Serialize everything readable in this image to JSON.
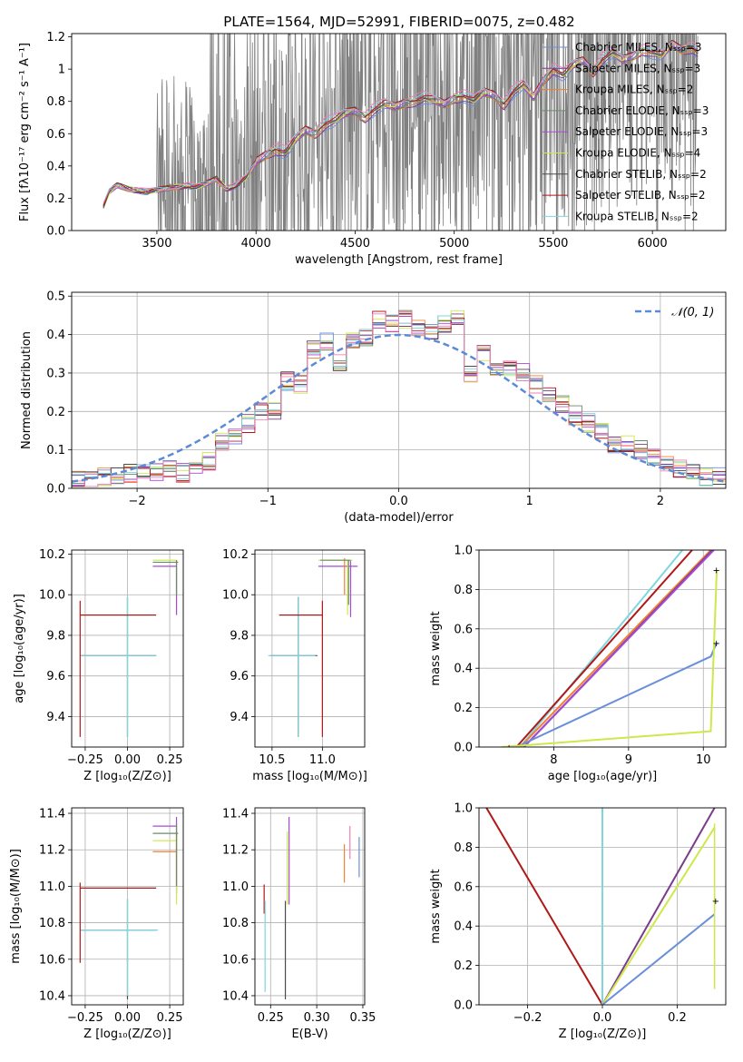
{
  "figure": {
    "title": "PLATE=1564, MJD=52991, FIBERID=0075, z=0.482"
  },
  "colors": {
    "chabrier_miles": "#6a8fd8",
    "salpeter_miles": "#7b3c8c",
    "kroupa_miles": "#f07f32",
    "chabrier_elodie": "#6a8b6a",
    "salpeter_elodie": "#a64ad6",
    "kroupa_elodie": "#cde84a",
    "chabrier_stelib": "#4a4a4a",
    "salpeter_stelib": "#b01818",
    "kroupa_stelib": "#7fd6e0",
    "pink_series": "#f07fb4",
    "data": "#808080",
    "normal": "#5b8ad6"
  },
  "chart_data": [
    {
      "id": "spectrum",
      "type": "line",
      "xlabel": "wavelength [Angstrom, rest frame]",
      "ylabel": "Flux [fλ10⁻¹⁷ erg cm⁻² s⁻¹ A⁻¹]",
      "xlim": [
        3070,
        6370
      ],
      "ylim": [
        0,
        1.22
      ],
      "xticks": [
        3500,
        4000,
        4500,
        5000,
        5500,
        6000
      ],
      "yticks": [
        0.0,
        0.2,
        0.4,
        0.6,
        0.8,
        1.0,
        1.2
      ],
      "legend_position": "top-right",
      "series": [
        {
          "name": "Chabrier MILES, N_SSP=3",
          "color": "#6a8fd8"
        },
        {
          "name": "Salpeter MILES, N_SSP=3",
          "color": "#7b3c8c"
        },
        {
          "name": "Kroupa MILES, N_SSP=2",
          "color": "#f07f32"
        },
        {
          "name": "Chabrier ELODIE, N_SSP=3",
          "color": "#6a8b6a"
        },
        {
          "name": "Salpeter ELODIE, N_SSP=3",
          "color": "#a64ad6"
        },
        {
          "name": "Kroupa ELODIE, N_SSP=4",
          "color": "#cde84a"
        },
        {
          "name": "Chabrier STELIB, N_SSP=2",
          "color": "#4a4a4a"
        },
        {
          "name": "Salpeter STELIB, N_SSP=2",
          "color": "#b01818"
        },
        {
          "name": "Kroupa STELIB, N_SSP=2",
          "color": "#7fd6e0"
        }
      ],
      "model_curve": {
        "x": [
          3230,
          3260,
          3300,
          3350,
          3400,
          3450,
          3500,
          3550,
          3600,
          3650,
          3700,
          3750,
          3800,
          3850,
          3900,
          3950,
          4000,
          4050,
          4100,
          4150,
          4200,
          4250,
          4300,
          4350,
          4400,
          4450,
          4500,
          4550,
          4600,
          4650,
          4700,
          4750,
          4800,
          4850,
          4900,
          4950,
          5000,
          5050,
          5100,
          5150,
          5200,
          5250,
          5300,
          5350,
          5400,
          5450,
          5500,
          5550,
          5600,
          5650,
          5700,
          5750,
          5800,
          5850,
          5900,
          5950,
          6000,
          6050,
          6100,
          6150,
          6200,
          6230
        ],
        "y": [
          0.15,
          0.24,
          0.28,
          0.26,
          0.25,
          0.24,
          0.25,
          0.26,
          0.27,
          0.28,
          0.27,
          0.29,
          0.32,
          0.26,
          0.28,
          0.33,
          0.42,
          0.47,
          0.5,
          0.48,
          0.56,
          0.62,
          0.6,
          0.66,
          0.68,
          0.72,
          0.74,
          0.7,
          0.75,
          0.78,
          0.76,
          0.79,
          0.8,
          0.82,
          0.8,
          0.78,
          0.82,
          0.83,
          0.8,
          0.85,
          0.84,
          0.78,
          0.86,
          0.9,
          0.82,
          0.93,
          1.0,
          0.96,
          1.02,
          1.05,
          0.98,
          1.06,
          1.1,
          1.05,
          1.08,
          1.12,
          1.1,
          1.08,
          1.15,
          1.12,
          1.13,
          1.1
        ]
      }
    },
    {
      "id": "residuals",
      "type": "line",
      "xlabel": "(data-model)/error",
      "ylabel": "Normed distribution",
      "xlim": [
        -2.5,
        2.5
      ],
      "ylim": [
        0,
        0.51
      ],
      "xticks": [
        -2,
        -1,
        0,
        1,
        2
      ],
      "yticks": [
        0.0,
        0.1,
        0.2,
        0.3,
        0.4,
        0.5
      ],
      "legend_position": "top-right",
      "legend": "𝒩(0, 1)",
      "hist_bins": [
        -2.5,
        -2.4,
        -2.3,
        -2.2,
        -2.1,
        -2.0,
        -1.9,
        -1.8,
        -1.7,
        -1.6,
        -1.5,
        -1.4,
        -1.3,
        -1.2,
        -1.1,
        -1.0,
        -0.9,
        -0.8,
        -0.7,
        -0.6,
        -0.5,
        -0.4,
        -0.3,
        -0.2,
        -0.1,
        0.0,
        0.1,
        0.2,
        0.3,
        0.4,
        0.5,
        0.6,
        0.7,
        0.8,
        0.9,
        1.0,
        1.1,
        1.2,
        1.3,
        1.4,
        1.5,
        1.6,
        1.7,
        1.8,
        1.9,
        2.0,
        2.1,
        2.2,
        2.3,
        2.4,
        2.5
      ],
      "hist_reference": [
        0.02,
        0.02,
        0.03,
        0.03,
        0.04,
        0.04,
        0.04,
        0.05,
        0.04,
        0.05,
        0.07,
        0.12,
        0.14,
        0.17,
        0.2,
        0.2,
        0.28,
        0.27,
        0.36,
        0.38,
        0.33,
        0.38,
        0.39,
        0.44,
        0.43,
        0.44,
        0.42,
        0.41,
        0.43,
        0.45,
        0.3,
        0.35,
        0.3,
        0.31,
        0.3,
        0.27,
        0.25,
        0.22,
        0.19,
        0.17,
        0.15,
        0.11,
        0.12,
        0.1,
        0.08,
        0.06,
        0.05,
        0.04,
        0.03,
        0.03
      ]
    },
    {
      "id": "age-vs-metallicity",
      "type": "scatter",
      "xlabel": "Z [log₁₀(Z/Z⊙)]",
      "ylabel": "age  [log₁₀(age/yr)]",
      "xlim": [
        -0.33,
        0.33
      ],
      "ylim": [
        9.25,
        10.22
      ],
      "xticks": [
        -0.25,
        0.0,
        0.25
      ],
      "yticks": [
        9.4,
        9.6,
        9.8,
        10.0,
        10.2
      ]
    },
    {
      "id": "age-vs-mass",
      "type": "scatter",
      "xlabel": "mass [log₁₀(M/M⊙)]",
      "ylabel": "",
      "xlim": [
        10.33,
        11.42
      ],
      "ylim": [
        9.25,
        10.22
      ],
      "xticks": [
        10.5,
        11.0
      ],
      "yticks": [
        9.4,
        9.6,
        9.8,
        10.0,
        10.2
      ]
    },
    {
      "id": "mass-weight-vs-age",
      "type": "line",
      "xlabel": "age  [log₁₀(age/yr)]",
      "ylabel": "mass weight",
      "xlim": [
        7.0,
        10.3
      ],
      "ylim": [
        0,
        1.0
      ],
      "xticks": [
        8,
        9,
        10
      ],
      "yticks": [
        0.0,
        0.2,
        0.4,
        0.6,
        0.8,
        1.0
      ]
    },
    {
      "id": "mass-vs-metallicity",
      "type": "scatter",
      "xlabel": "Z [log₁₀(Z/Z⊙)]",
      "ylabel": "mass [log₁₀(M/M⊙)]",
      "xlim": [
        -0.33,
        0.33
      ],
      "ylim": [
        10.35,
        11.43
      ],
      "xticks": [
        -0.25,
        0.0,
        0.25
      ],
      "yticks": [
        10.4,
        10.6,
        10.8,
        11.0,
        11.2,
        11.4
      ]
    },
    {
      "id": "mass-vs-extinction",
      "type": "scatter",
      "xlabel": "E(B-V)",
      "ylabel": "",
      "xlim": [
        0.233,
        0.352
      ],
      "ylim": [
        10.35,
        11.43
      ],
      "xticks": [
        0.25,
        0.3,
        0.35
      ],
      "yticks": [
        10.4,
        10.6,
        10.8,
        11.0,
        11.2,
        11.4
      ]
    },
    {
      "id": "mass-weight-vs-metallicity",
      "type": "line",
      "xlabel": "Z [log₁₀(Z/Z⊙)]",
      "ylabel": "mass weight",
      "xlim": [
        -0.33,
        0.33
      ],
      "ylim": [
        0,
        1.0
      ],
      "xticks": [
        -0.2,
        0.0,
        0.2
      ],
      "yticks": [
        0.0,
        0.2,
        0.4,
        0.6,
        0.8,
        1.0
      ]
    }
  ]
}
